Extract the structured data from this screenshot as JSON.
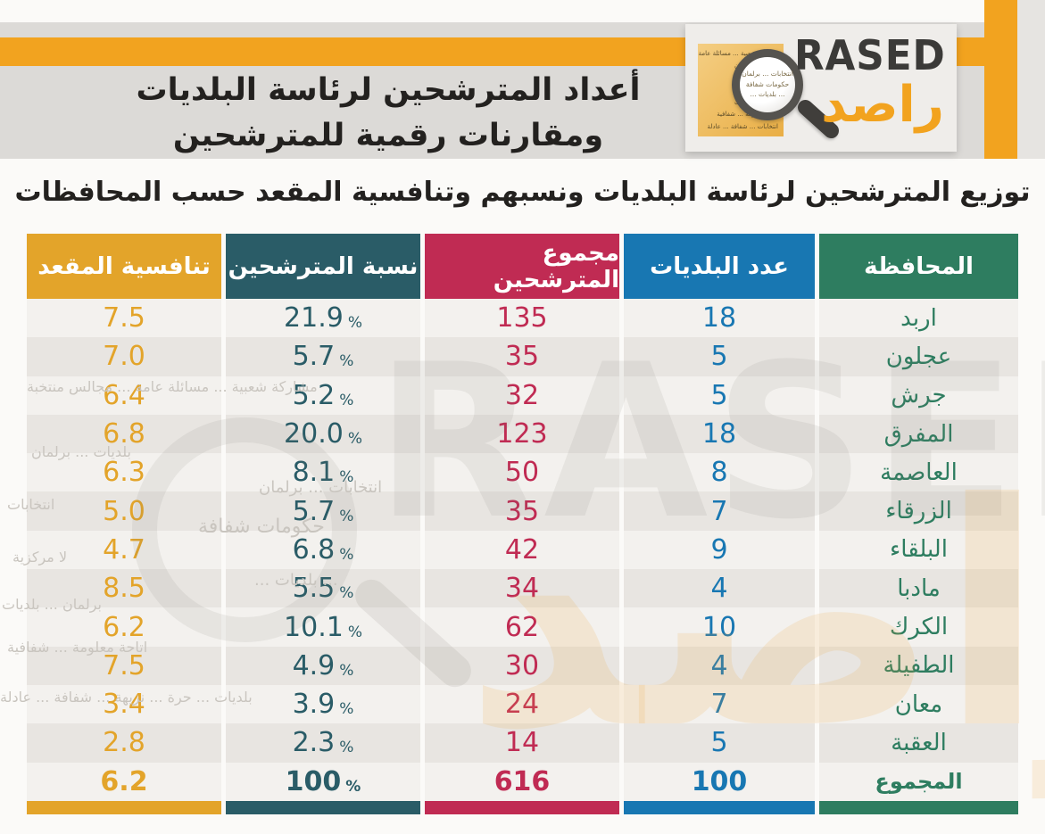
{
  "header": {
    "title_line1": "أعداد المترشحين لرئاسة البلديات",
    "title_line2": "ومقارنات رقمية للمترشحين",
    "logo": {
      "name_en": "RASED",
      "name_ar": "راصد",
      "note_lines": [
        "مشاركة شعبية ... مسائلة عامة",
        "بلديات ... برلمان",
        "... انتخابات",
        "لا مركزية ...",
        "برلمان ... بلديات",
        "اتاحة معلومة ... شفافية",
        "انتخابات ... شفافة ... عادلة"
      ],
      "lens_lines": [
        "انتخابات ... برلمان",
        "حكومات شفافة",
        "... بلديات ..."
      ]
    }
  },
  "subtitle": "توزيع المترشحين لرئاسة البلديات ونسبهم وتنافسية المقعد حسب المحافظات",
  "table": {
    "percent_sign": "%",
    "columns": [
      {
        "key": "governorate",
        "label": "المحافظة"
      },
      {
        "key": "municipalities",
        "label": "عدد البلديات"
      },
      {
        "key": "candidates_total",
        "label": "مجموع المترشحين"
      },
      {
        "key": "candidates_pct",
        "label": "نسبة المترشحين"
      },
      {
        "key": "seat_competitiveness",
        "label": "تنافسية المقعد"
      }
    ],
    "rows": [
      {
        "governorate": "اربد",
        "municipalities": "18",
        "candidates_total": "135",
        "candidates_pct": "21.9",
        "seat_competitiveness": "7.5",
        "is_total": false
      },
      {
        "governorate": "عجلون",
        "municipalities": "5",
        "candidates_total": "35",
        "candidates_pct": "5.7",
        "seat_competitiveness": "7.0",
        "is_total": false
      },
      {
        "governorate": "جرش",
        "municipalities": "5",
        "candidates_total": "32",
        "candidates_pct": "5.2",
        "seat_competitiveness": "6.4",
        "is_total": false
      },
      {
        "governorate": "المفرق",
        "municipalities": "18",
        "candidates_total": "123",
        "candidates_pct": "20.0",
        "seat_competitiveness": "6.8",
        "is_total": false
      },
      {
        "governorate": "العاصمة",
        "municipalities": "8",
        "candidates_total": "50",
        "candidates_pct": "8.1",
        "seat_competitiveness": "6.3",
        "is_total": false
      },
      {
        "governorate": "الزرقاء",
        "municipalities": "7",
        "candidates_total": "35",
        "candidates_pct": "5.7",
        "seat_competitiveness": "5.0",
        "is_total": false
      },
      {
        "governorate": "البلقاء",
        "municipalities": "9",
        "candidates_total": "42",
        "candidates_pct": "6.8",
        "seat_competitiveness": "4.7",
        "is_total": false
      },
      {
        "governorate": "مادبا",
        "municipalities": "4",
        "candidates_total": "34",
        "candidates_pct": "5.5",
        "seat_competitiveness": "8.5",
        "is_total": false
      },
      {
        "governorate": "الكرك",
        "municipalities": "10",
        "candidates_total": "62",
        "candidates_pct": "10.1",
        "seat_competitiveness": "6.2",
        "is_total": false
      },
      {
        "governorate": "الطفيلة",
        "municipalities": "4",
        "candidates_total": "30",
        "candidates_pct": "4.9",
        "seat_competitiveness": "7.5",
        "is_total": false
      },
      {
        "governorate": "معان",
        "municipalities": "7",
        "candidates_total": "24",
        "candidates_pct": "3.9",
        "seat_competitiveness": "3.4",
        "is_total": false
      },
      {
        "governorate": "العقبة",
        "municipalities": "5",
        "candidates_total": "14",
        "candidates_pct": "2.3",
        "seat_competitiveness": "2.8",
        "is_total": false
      },
      {
        "governorate": "المجموع",
        "municipalities": "100",
        "candidates_total": "616",
        "candidates_pct": "100",
        "seat_competitiveness": "6.2",
        "is_total": true
      }
    ]
  },
  "chart_data": {
    "type": "table",
    "title": "توزيع المترشحين لرئاسة البلديات ونسبهم وتنافسية المقعد حسب المحافظات",
    "columns": [
      "المحافظة",
      "عدد البلديات",
      "مجموع المترشحين",
      "نسبة المترشحين (%)",
      "تنافسية المقعد"
    ],
    "rows": [
      [
        "اربد",
        18,
        135,
        21.9,
        7.5
      ],
      [
        "عجلون",
        5,
        35,
        5.7,
        7.0
      ],
      [
        "جرش",
        5,
        32,
        5.2,
        6.4
      ],
      [
        "المفرق",
        18,
        123,
        20.0,
        6.8
      ],
      [
        "العاصمة",
        8,
        50,
        8.1,
        6.3
      ],
      [
        "الزرقاء",
        7,
        35,
        5.7,
        5.0
      ],
      [
        "البلقاء",
        9,
        42,
        6.8,
        4.7
      ],
      [
        "مادبا",
        4,
        34,
        5.5,
        8.5
      ],
      [
        "الكرك",
        10,
        62,
        10.1,
        6.2
      ],
      [
        "الطفيلة",
        4,
        30,
        4.9,
        7.5
      ],
      [
        "معان",
        7,
        24,
        3.9,
        3.4
      ],
      [
        "العقبة",
        5,
        14,
        2.3,
        2.8
      ],
      [
        "المجموع",
        100,
        616,
        100,
        6.2
      ]
    ]
  },
  "watermark": {
    "big_en": "RASED",
    "big_ar": "راصد",
    "phrases": [
      "مشاركة شعبية ... مسائلة عامة ... مجالس منتخبة",
      "بلديات ... برلمان",
      "انتخابات ... برلمان",
      "انتخابات",
      "حكومات شفافة",
      "لا مركزية",
      "... بلديات ...",
      "برلمان ... بلديات",
      "اتاحة معلومة ... شفافية",
      "بلديات ... حرة ... نزيهة ... شفافة ... عادلة"
    ]
  },
  "colors": {
    "accent_orange": "#F2A31F",
    "gray_band": "#DCDAD7",
    "col_gov": "#2E7D60",
    "col_mun": "#1877B2",
    "col_total": "#C02B53",
    "col_pct": "#2A5C67",
    "col_seat": "#E3A42A",
    "row_light": "#F3F1EE",
    "row_dark": "#E8E5E1",
    "text_dark": "#23211F",
    "logo_text": "#3B3A38"
  }
}
